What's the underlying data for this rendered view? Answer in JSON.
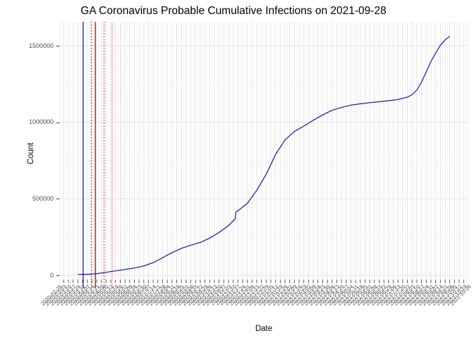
{
  "title": "GA Coronavirus Probable Cumulative Infections on 2021-09-28",
  "x_axis": {
    "label": "Date"
  },
  "y_axis": {
    "label": "Count",
    "tick_labels": [
      "0",
      "500000",
      "1000000",
      "1500000"
    ]
  },
  "chart_data": {
    "type": "line",
    "title": "GA Coronavirus Probable Cumulative Infections on 2021-09-28",
    "xlabel": "Date",
    "ylabel": "Count",
    "legend": "none",
    "grid": "major+minor",
    "x_range": [
      "2020-03-24",
      "2021-09-28"
    ],
    "x_tick_interval_days": 7,
    "ylim": [
      0,
      1650000
    ],
    "y_ticks": [
      0,
      500000,
      1000000,
      1500000
    ],
    "y_minor_ticks": [
      250000,
      750000,
      1250000
    ],
    "x_tick_labels": [
      "2020-02-25",
      "2020-03-03",
      "2020-03-10",
      "2020-03-17",
      "2020-03-24",
      "2020-03-31",
      "2020-04-07",
      "2020-04-14",
      "2020-04-21",
      "2020-04-28",
      "2020-05-05",
      "2020-05-12",
      "2020-05-19",
      "2020-05-26",
      "2020-06-02",
      "2020-06-09",
      "2020-06-16",
      "2020-06-23",
      "2020-06-30",
      "2020-07-07",
      "2020-07-14",
      "2020-07-21",
      "2020-07-28",
      "2020-08-04",
      "2020-08-11",
      "2020-08-18",
      "2020-08-25",
      "2020-09-01",
      "2020-09-08",
      "2020-09-15",
      "2020-09-22",
      "2020-09-29",
      "2020-10-06",
      "2020-10-13",
      "2020-10-20",
      "2020-10-27",
      "2020-11-03",
      "2020-11-10",
      "2020-11-17",
      "2020-11-24",
      "2020-12-01",
      "2020-12-08",
      "2020-12-15",
      "2020-12-22",
      "2020-12-29",
      "2021-01-05",
      "2021-01-12",
      "2021-01-19",
      "2021-01-26",
      "2021-02-02",
      "2021-02-09",
      "2021-02-16",
      "2021-02-23",
      "2021-03-02",
      "2021-03-09",
      "2021-03-16",
      "2021-03-23",
      "2021-03-30",
      "2021-04-06",
      "2021-04-13",
      "2021-04-20",
      "2021-04-27",
      "2021-05-04",
      "2021-05-11",
      "2021-05-18",
      "2021-05-25",
      "2021-06-01",
      "2021-06-08",
      "2021-06-15",
      "2021-06-22",
      "2021-06-29",
      "2021-07-06",
      "2021-07-13",
      "2021-07-20",
      "2021-07-27",
      "2021-08-03",
      "2021-08-10",
      "2021-08-17",
      "2021-08-24",
      "2021-08-31",
      "2021-09-07",
      "2021-09-14",
      "2021-09-21",
      "2021-09-28",
      "2021-10-05",
      "2021-10-12",
      "2021-10-19",
      "2021-10-26"
    ],
    "series": [
      {
        "name": "probable-cumulative-infections",
        "color": "#1515ae",
        "points": [
          [
            "2020-03-24",
            6000
          ],
          [
            "2020-03-31",
            6500
          ],
          [
            "2020-04-07",
            7000
          ],
          [
            "2020-04-14",
            8000
          ],
          [
            "2020-04-21",
            11000
          ],
          [
            "2020-05-05",
            20000
          ],
          [
            "2020-05-19",
            29000
          ],
          [
            "2020-06-02",
            38000
          ],
          [
            "2020-06-16",
            48000
          ],
          [
            "2020-06-30",
            61000
          ],
          [
            "2020-07-14",
            83000
          ],
          [
            "2020-07-28",
            115000
          ],
          [
            "2020-08-11",
            148000
          ],
          [
            "2020-08-25",
            176000
          ],
          [
            "2020-09-08",
            197000
          ],
          [
            "2020-09-22",
            215000
          ],
          [
            "2020-10-06",
            243000
          ],
          [
            "2020-10-20",
            280000
          ],
          [
            "2020-11-03",
            325000
          ],
          [
            "2020-11-13",
            370000
          ],
          [
            "2020-11-14",
            412000
          ],
          [
            "2020-12-01",
            470000
          ],
          [
            "2020-12-15",
            556000
          ],
          [
            "2020-12-29",
            660000
          ],
          [
            "2021-01-12",
            790000
          ],
          [
            "2021-01-26",
            885000
          ],
          [
            "2021-02-09",
            940000
          ],
          [
            "2021-02-23",
            975000
          ],
          [
            "2021-03-09",
            1013000
          ],
          [
            "2021-03-23",
            1048000
          ],
          [
            "2021-04-06",
            1078000
          ],
          [
            "2021-04-20",
            1098000
          ],
          [
            "2021-05-04",
            1112000
          ],
          [
            "2021-05-18",
            1121000
          ],
          [
            "2021-06-01",
            1128000
          ],
          [
            "2021-06-15",
            1134000
          ],
          [
            "2021-06-29",
            1141000
          ],
          [
            "2021-07-13",
            1149000
          ],
          [
            "2021-07-27",
            1164000
          ],
          [
            "2021-08-03",
            1180000
          ],
          [
            "2021-08-10",
            1210000
          ],
          [
            "2021-08-17",
            1263000
          ],
          [
            "2021-08-24",
            1329000
          ],
          [
            "2021-08-31",
            1397000
          ],
          [
            "2021-09-07",
            1452000
          ],
          [
            "2021-09-14",
            1503000
          ],
          [
            "2021-09-21",
            1538000
          ],
          [
            "2021-09-28",
            1562000
          ]
        ]
      }
    ],
    "vlines": [
      {
        "date": "2020-04-01",
        "color": "#2222cc",
        "style": "solid"
      },
      {
        "date": "2020-04-13",
        "color": "#2222cc",
        "style": "dotted"
      },
      {
        "date": "2020-04-19",
        "color": "#cc0000",
        "style": "solid"
      },
      {
        "date": "2020-05-02",
        "color": "#cc0000",
        "style": "dotted"
      },
      {
        "date": "2020-05-14",
        "color": "#f7b6c2",
        "style": "solid"
      },
      {
        "date": "2020-05-27",
        "color": "#f9cdd6",
        "style": "dotted"
      }
    ],
    "colors": {
      "grid_major": "#e3e3e3",
      "grid_minor": "#f0f0f0",
      "tick": "#333333",
      "tick_label": "#4d4d4d",
      "background": "#ffffff"
    }
  }
}
